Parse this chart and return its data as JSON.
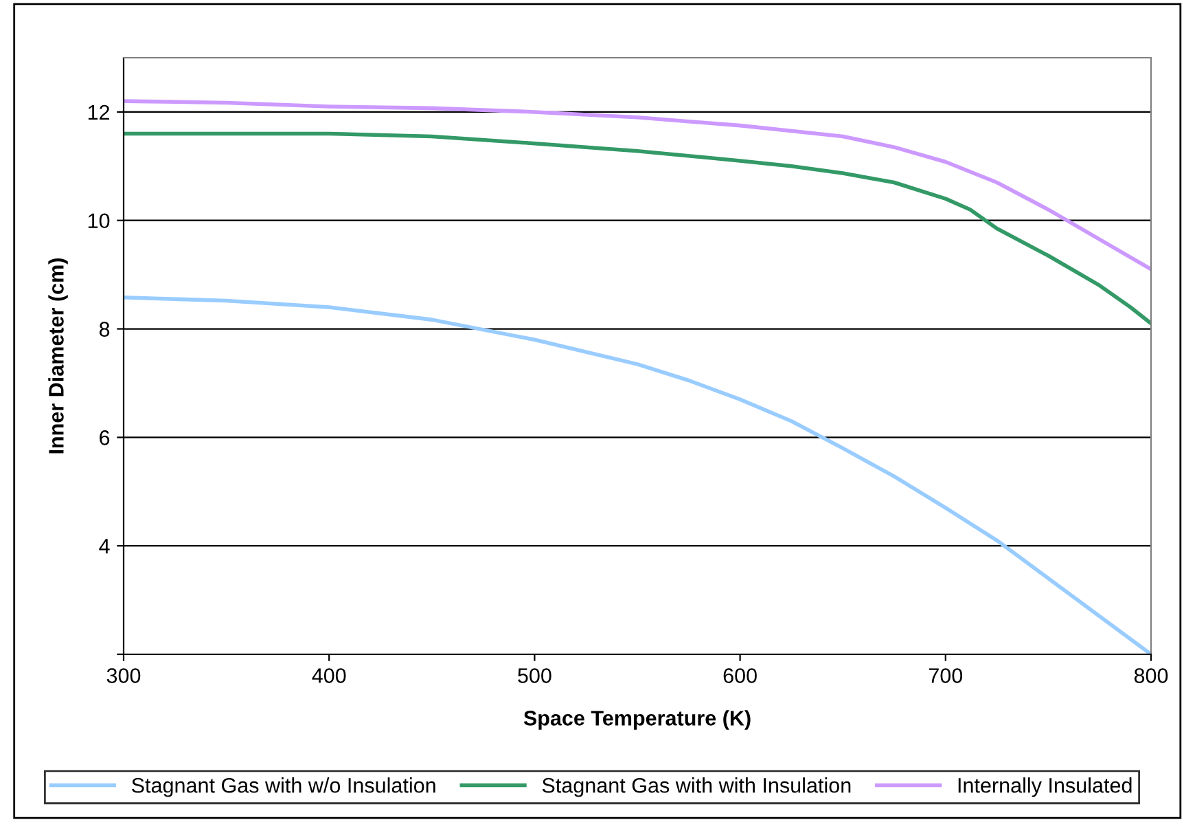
{
  "chart_data": {
    "type": "line",
    "xlabel": "Space Temperature (K)",
    "ylabel": "Inner Diameter (cm)",
    "xlim": [
      300,
      800
    ],
    "xticks": [
      300,
      400,
      500,
      600,
      700,
      800
    ],
    "ylim": [
      2,
      13
    ],
    "yticks": [
      {
        "value": 2,
        "label": null
      },
      4,
      6,
      8,
      10,
      12
    ],
    "grid": "y",
    "legend": "bottom",
    "series": [
      {
        "name": "Stagnant Gas with w/o Insulation",
        "color": "#99ccff",
        "x": [
          300,
          350,
          400,
          450,
          500,
          550,
          575,
          600,
          625,
          650,
          675,
          700,
          725,
          750,
          775,
          800
        ],
        "values": [
          8.58,
          8.52,
          8.4,
          8.17,
          7.8,
          7.35,
          7.05,
          6.7,
          6.3,
          5.8,
          5.28,
          4.7,
          4.1,
          3.4,
          2.7,
          2.0
        ]
      },
      {
        "name": "Stagnant Gas with with Insulation",
        "color": "#339966",
        "x": [
          300,
          400,
          450,
          500,
          550,
          600,
          625,
          650,
          675,
          700,
          712,
          725,
          750,
          775,
          790,
          800
        ],
        "values": [
          11.6,
          11.6,
          11.55,
          11.42,
          11.28,
          11.1,
          11.0,
          10.87,
          10.7,
          10.4,
          10.2,
          9.85,
          9.35,
          8.8,
          8.4,
          8.1
        ]
      },
      {
        "name": "Internally Insulated",
        "color": "#cc99ff",
        "x": [
          300,
          350,
          400,
          450,
          500,
          550,
          600,
          625,
          650,
          675,
          700,
          725,
          750,
          775,
          800
        ],
        "values": [
          12.2,
          12.17,
          12.1,
          12.07,
          12.0,
          11.9,
          11.75,
          11.65,
          11.55,
          11.35,
          11.08,
          10.7,
          10.2,
          9.65,
          9.1
        ]
      }
    ]
  }
}
